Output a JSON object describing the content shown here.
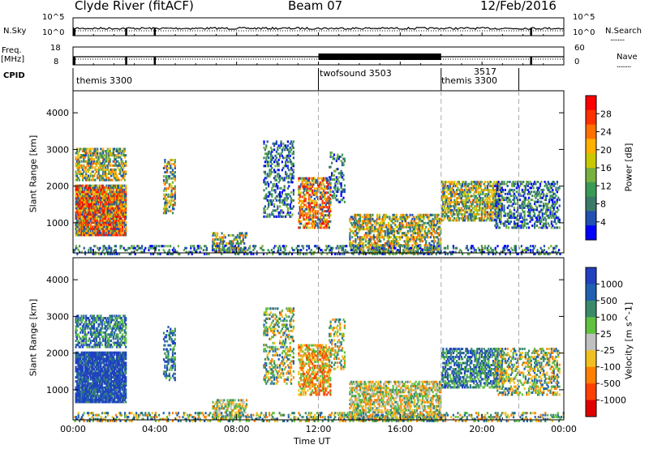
{
  "header": {
    "station": "Clyde River (fitACF)",
    "beam": "Beam 07",
    "date": "12/Feb/2016"
  },
  "panel_labels": {
    "nsky": "N.Sky",
    "nsearch": "N.Search",
    "freq_top": "Freq.",
    "freq_unit": "[MHz]",
    "nave": "Nave",
    "cpid": "CPID",
    "dots": "........"
  },
  "axis_labels": {
    "nsky_hi": "10^5",
    "nsky_lo": "10^0",
    "nsearch_hi": "10^5",
    "nsearch_lo": "10^0",
    "freq_hi": "18",
    "freq_lo": "8",
    "nave_hi": "60",
    "nave_lo": "0"
  },
  "cpid_programs": [
    {
      "label": "themis 3300",
      "start_hour": 0.0
    },
    {
      "label": "twofsound 3503",
      "start_hour": 12.0
    },
    {
      "label": "themis 3300",
      "start_hour": 18.0
    },
    {
      "label": "3517",
      "start_hour": 19.0
    }
  ],
  "chart_data": [
    {
      "type": "heatmap",
      "name": "power",
      "ylabel": "Slant Range [km]",
      "yticks": [
        1000,
        2000,
        3000,
        4000
      ],
      "ylim": [
        180,
        4600
      ],
      "colorbar": {
        "label": "Power [dB]",
        "ticks": [
          4,
          8,
          12,
          16,
          20,
          24,
          28
        ],
        "range": [
          0,
          32
        ],
        "colors": [
          "#0000ff",
          "#2050b0",
          "#3a7a6a",
          "#3a9a55",
          "#78b040",
          "#c8c800",
          "#ffb000",
          "#ff7000",
          "#ff3000",
          "#ff0000"
        ]
      }
    },
    {
      "type": "heatmap",
      "name": "velocity",
      "ylabel": "Slant Range [km]",
      "yticks": [
        1000,
        2000,
        3000,
        4000
      ],
      "ylim": [
        180,
        4600
      ],
      "xlabel": "Time UT",
      "xticks": [
        "00:00",
        "04:00",
        "08:00",
        "12:00",
        "16:00",
        "20:00",
        "00:00"
      ],
      "xlim_hours": [
        0,
        24
      ],
      "colorbar": {
        "label": "Velocity [m s^-1]",
        "ticks": [
          1000,
          500,
          100,
          25,
          -25,
          -100,
          -500,
          -1000
        ],
        "colors": [
          "#2040c0",
          "#2060b0",
          "#3a8a6a",
          "#60c040",
          "#c0c0c0",
          "#f0c020",
          "#ff8000",
          "#ff4000",
          "#e00000"
        ]
      }
    }
  ]
}
